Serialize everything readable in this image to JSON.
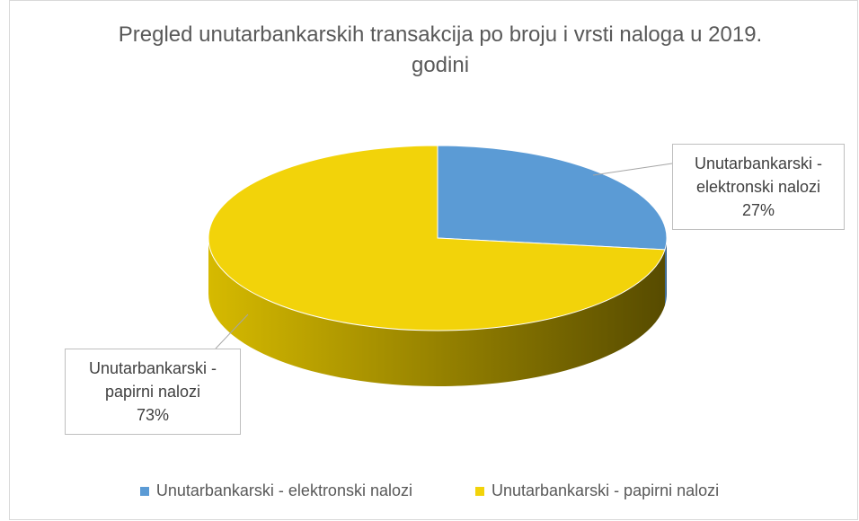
{
  "chart_data": {
    "type": "pie3d",
    "title": "Pregled unutarbankarskih transakcija po broju i vrsti naloga u 2019. godini",
    "categories": [
      "Unutarbankarski - elektronski nalozi",
      "Unutarbankarski - papirni nalozi"
    ],
    "values": [
      27,
      73
    ],
    "value_labels": [
      "27%",
      "73%"
    ],
    "colors": [
      "#5b9bd5",
      "#f2d30a"
    ],
    "legend": "bottom"
  }
}
